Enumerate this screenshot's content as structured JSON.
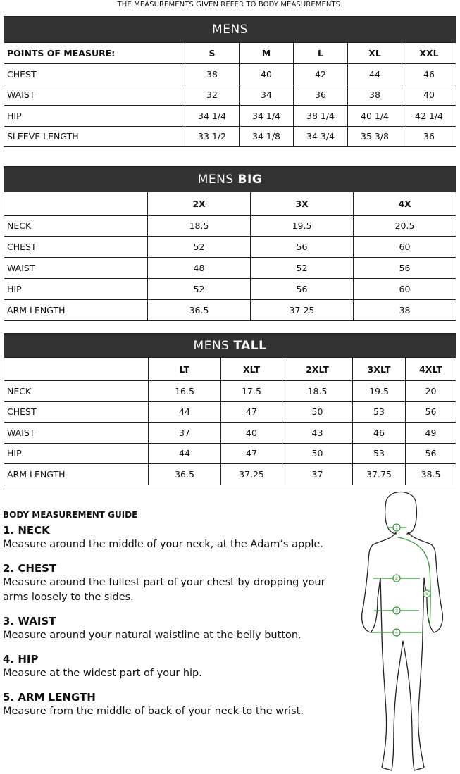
{
  "note": "THE MEASUREMENTS GIVEN REFER TO BODY MEASUREMENTS.",
  "mens": {
    "title": "MENS",
    "header": [
      "POINTS OF MEASURE:",
      "S",
      "M",
      "L",
      "XL",
      "XXL"
    ],
    "rows": [
      [
        "CHEST",
        "38",
        "40",
        "42",
        "44",
        "46"
      ],
      [
        "WAIST",
        "32",
        "34",
        "36",
        "38",
        "40"
      ],
      [
        "HIP",
        "34 1/4",
        "34 1/4",
        "38 1/4",
        "40 1/4",
        "42 1/4"
      ],
      [
        "SLEEVE LENGTH",
        "33 1/2",
        "34 1/8",
        "34 3/4",
        "35 3/8",
        "36"
      ]
    ]
  },
  "big": {
    "title_a": "MENS",
    "title_b": "BIG",
    "header": [
      "",
      "2X",
      "3X",
      "4X"
    ],
    "rows": [
      [
        "NECK",
        "18.5",
        "19.5",
        "20.5"
      ],
      [
        "CHEST",
        "52",
        "56",
        "60"
      ],
      [
        "WAIST",
        "48",
        "52",
        "56"
      ],
      [
        "HIP",
        "52",
        "56",
        "60"
      ],
      [
        "ARM LENGTH",
        "36.5",
        "37.25",
        "38"
      ]
    ]
  },
  "tall": {
    "title_a": "MENS",
    "title_b": "TALL",
    "header": [
      "",
      "LT",
      "XLT",
      "2XLT",
      "3XLT",
      "4XLT"
    ],
    "rows": [
      [
        "NECK",
        "16.5",
        "17.5",
        "18.5",
        "19.5",
        "20"
      ],
      [
        "CHEST",
        "44",
        "47",
        "50",
        "53",
        "56"
      ],
      [
        "WAIST",
        "37",
        "40",
        "43",
        "46",
        "49"
      ],
      [
        "HIP",
        "44",
        "47",
        "50",
        "53",
        "56"
      ],
      [
        "ARM LENGTH",
        "36.5",
        "37.25",
        "37",
        "37.75",
        "38.5"
      ]
    ]
  },
  "guide": {
    "title": "BODY MEASUREMENT GUIDE",
    "items": [
      {
        "h": "1. NECK",
        "p": "Measure around the middle of your neck, at the Adam’s apple."
      },
      {
        "h": "2. CHEST",
        "p": "Measure around the fullest part of your chest by dropping your arms loosely to the sides."
      },
      {
        "h": "3. WAIST",
        "p": "Measure around your natural waistline at the belly button."
      },
      {
        "h": "4. HIP",
        "p": "Measure at the widest part of your hip."
      },
      {
        "h": "5. ARM LENGTH",
        "p": "Measure from the middle of back of your neck to the wrist."
      }
    ]
  },
  "figure": {
    "markers": [
      "1",
      "2",
      "3",
      "4",
      "5"
    ],
    "accent": "#3a9a3a"
  }
}
